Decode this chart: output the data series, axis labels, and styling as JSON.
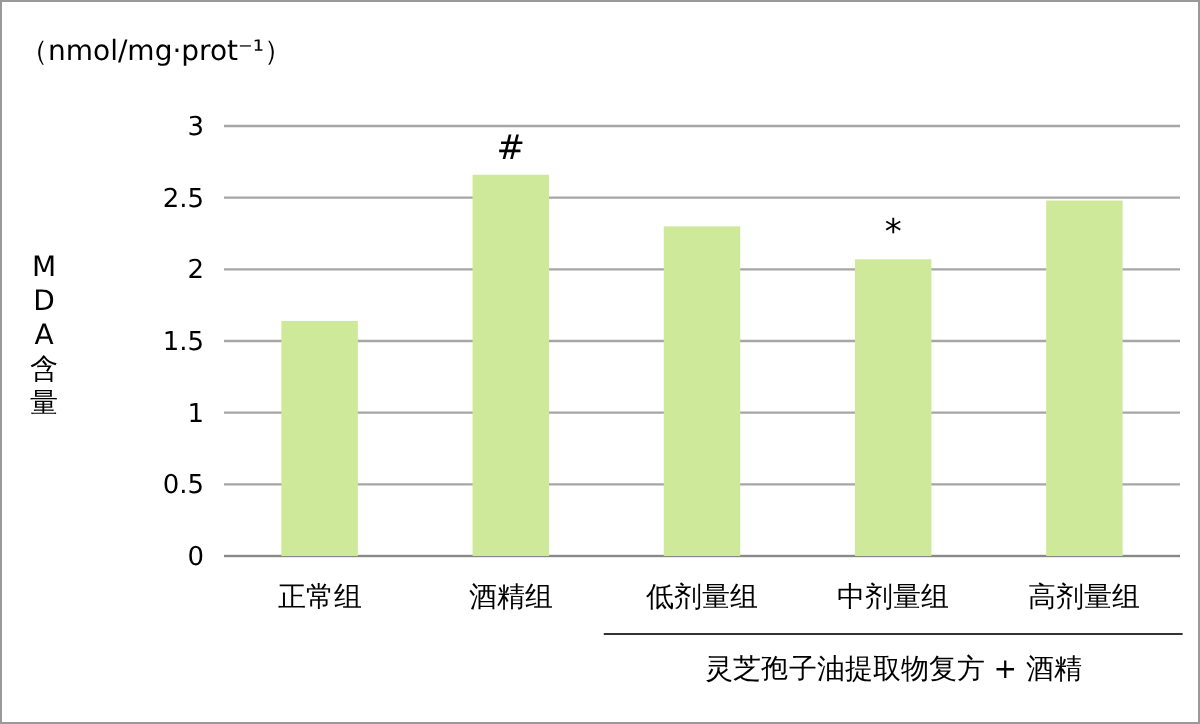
{
  "chart_data": {
    "type": "bar",
    "ylabel": "MDA含量",
    "categories": [
      "正常组",
      "酒精组",
      "低剂量组",
      "中剂量组",
      "高剂量组"
    ],
    "values": [
      1.64,
      2.66,
      2.3,
      2.07,
      2.48
    ],
    "color": "#cfe99a",
    "ylim": [
      0,
      3
    ],
    "yticks": [
      0,
      0.5,
      1,
      1.5,
      2,
      2.5,
      3
    ],
    "grid": "y",
    "annotations": [
      {
        "text": "#",
        "x": "酒精组",
        "y": 2.66
      },
      {
        "text": "*",
        "x": "中剂量组",
        "y": 2.07
      },
      "（nmol/mg·prot⁻¹）",
      "灵芝孢子油提取物复方 + 酒精"
    ]
  }
}
